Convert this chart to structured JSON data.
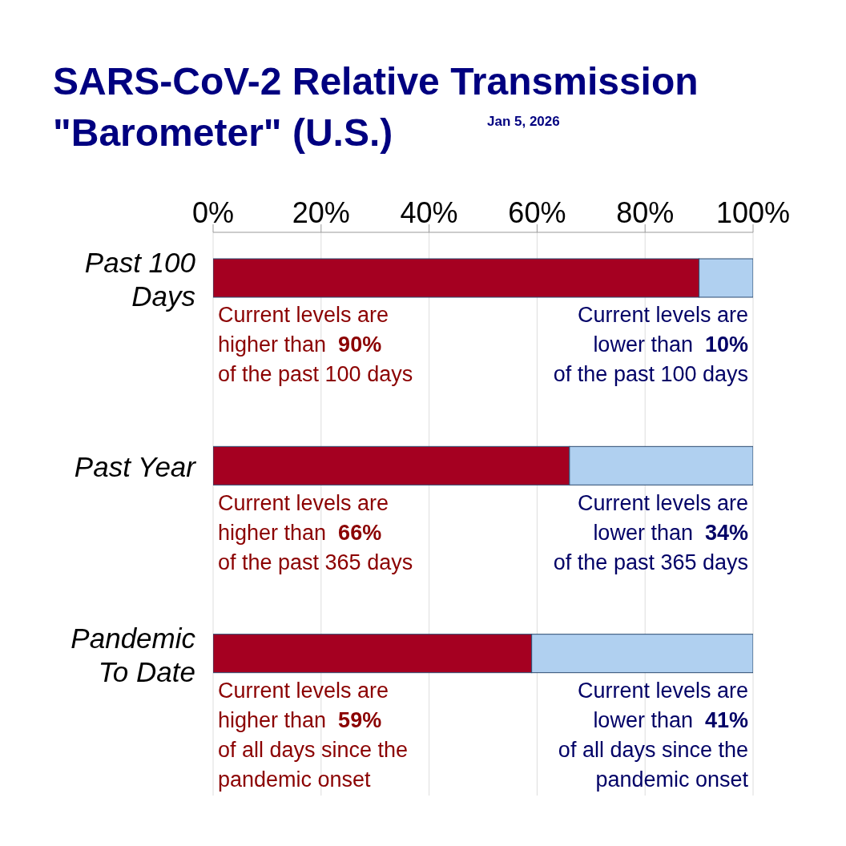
{
  "chart_data": {
    "type": "bar",
    "orientation": "horizontal",
    "stacked": true,
    "title": "SARS-CoV-2 Relative Transmission\n\"Barometer\" (U.S.)",
    "subtitle": "Jan 5, 2026",
    "categories": [
      "Past 100 Days",
      "Past Year",
      "Pandemic To Date"
    ],
    "series": [
      {
        "color": "#a50021",
        "values": [
          90,
          66,
          59
        ]
      },
      {
        "color": "#b0d0f0",
        "values": [
          10,
          34,
          41
        ]
      }
    ],
    "xlim": [
      0,
      100
    ],
    "xticks": [
      {
        "value": 0,
        "label": "0%"
      },
      {
        "value": 20,
        "label": "20%"
      },
      {
        "value": 40,
        "label": "40%"
      },
      {
        "value": 60,
        "label": "60%"
      },
      {
        "value": 80,
        "label": "80%"
      },
      {
        "value": 100,
        "label": "100%"
      }
    ],
    "grid": "x",
    "annotations": [
      "Current levels are\nhigher than  90%\nof the past 100 days",
      "Current levels are\nlower than  10%\nof the past 100 days",
      "Current levels are\nhigher than  66%\nof the past 365 days",
      "Current levels are\nlower than  34%\nof the past 365 days",
      "Current levels are\nhigher than  59%\nof all days since the\npandemic onset",
      "Current levels are\nlower than  41%\nof all days since the\npandemic onset"
    ]
  }
}
